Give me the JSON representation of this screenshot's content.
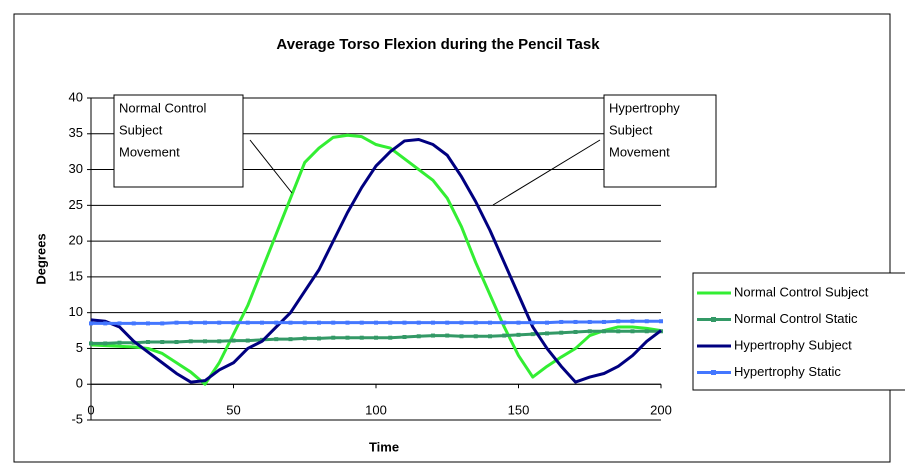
{
  "chart_data": {
    "type": "line",
    "title": "Average Torso Flexion during the Pencil Task",
    "x_label": "Time",
    "y_label": "Degrees",
    "x": [
      0,
      5,
      10,
      15,
      20,
      25,
      30,
      35,
      40,
      45,
      50,
      55,
      60,
      65,
      70,
      75,
      80,
      85,
      90,
      95,
      100,
      105,
      110,
      115,
      120,
      125,
      130,
      135,
      140,
      145,
      150,
      155,
      160,
      165,
      170,
      175,
      180,
      185,
      190,
      195,
      200
    ],
    "xlim": [
      0,
      200
    ],
    "xticks": [
      0,
      50,
      100,
      150,
      200
    ],
    "ylim": [
      -5,
      40
    ],
    "yticks": [
      -5,
      0,
      5,
      10,
      15,
      20,
      25,
      30,
      35,
      40
    ],
    "grid": true,
    "legend": "right",
    "series": [
      {
        "name": "Normal Control Subject",
        "color": "#33ee33",
        "marker": false,
        "values": [
          5.5,
          5.4,
          5.3,
          5.2,
          5,
          4.3,
          3,
          1.7,
          0,
          3,
          7,
          11,
          16,
          21,
          26,
          31,
          33,
          34.5,
          34.8,
          34.6,
          33.5,
          33,
          31.5,
          30,
          28.5,
          26,
          22,
          17,
          12.5,
          8,
          4,
          1,
          2.5,
          3.8,
          5,
          6.8,
          7.5,
          8,
          8,
          7.8,
          7.5
        ]
      },
      {
        "name": "Normal Control Static",
        "color": "#339966",
        "marker": true,
        "values": [
          5.7,
          5.7,
          5.8,
          5.8,
          5.9,
          5.9,
          5.9,
          6,
          6,
          6,
          6.1,
          6.1,
          6.2,
          6.3,
          6.3,
          6.4,
          6.4,
          6.5,
          6.5,
          6.5,
          6.5,
          6.5,
          6.6,
          6.7,
          6.8,
          6.8,
          6.7,
          6.7,
          6.7,
          6.8,
          6.9,
          7,
          7.1,
          7.2,
          7.3,
          7.4,
          7.4,
          7.4,
          7.4,
          7.4,
          7.4
        ]
      },
      {
        "name": "Hypertrophy Subject",
        "color": "#000080",
        "marker": false,
        "values": [
          9,
          8.8,
          8,
          6,
          4.5,
          3,
          1.5,
          0.3,
          0.5,
          2,
          3,
          5,
          6,
          8,
          10,
          13,
          16,
          20,
          24,
          27.5,
          30.5,
          32.5,
          34,
          34.2,
          33.5,
          32,
          29,
          25.5,
          21.5,
          17,
          12.5,
          8,
          5,
          2.5,
          0.3,
          1,
          1.5,
          2.5,
          4,
          6,
          7.5
        ]
      },
      {
        "name": "Hypertrophy Static",
        "color": "#4477ff",
        "marker": true,
        "values": [
          8.5,
          8.5,
          8.5,
          8.5,
          8.5,
          8.5,
          8.6,
          8.6,
          8.6,
          8.6,
          8.6,
          8.6,
          8.6,
          8.6,
          8.6,
          8.6,
          8.6,
          8.6,
          8.6,
          8.6,
          8.6,
          8.6,
          8.6,
          8.6,
          8.6,
          8.6,
          8.6,
          8.6,
          8.6,
          8.6,
          8.6,
          8.6,
          8.6,
          8.7,
          8.7,
          8.7,
          8.7,
          8.8,
          8.8,
          8.8,
          8.8
        ]
      }
    ],
    "annotations": [
      {
        "lines": [
          "Normal Control",
          "Subject",
          "Movement"
        ]
      },
      {
        "lines": [
          "Hypertrophy",
          "Subject",
          "Movement"
        ]
      }
    ]
  }
}
